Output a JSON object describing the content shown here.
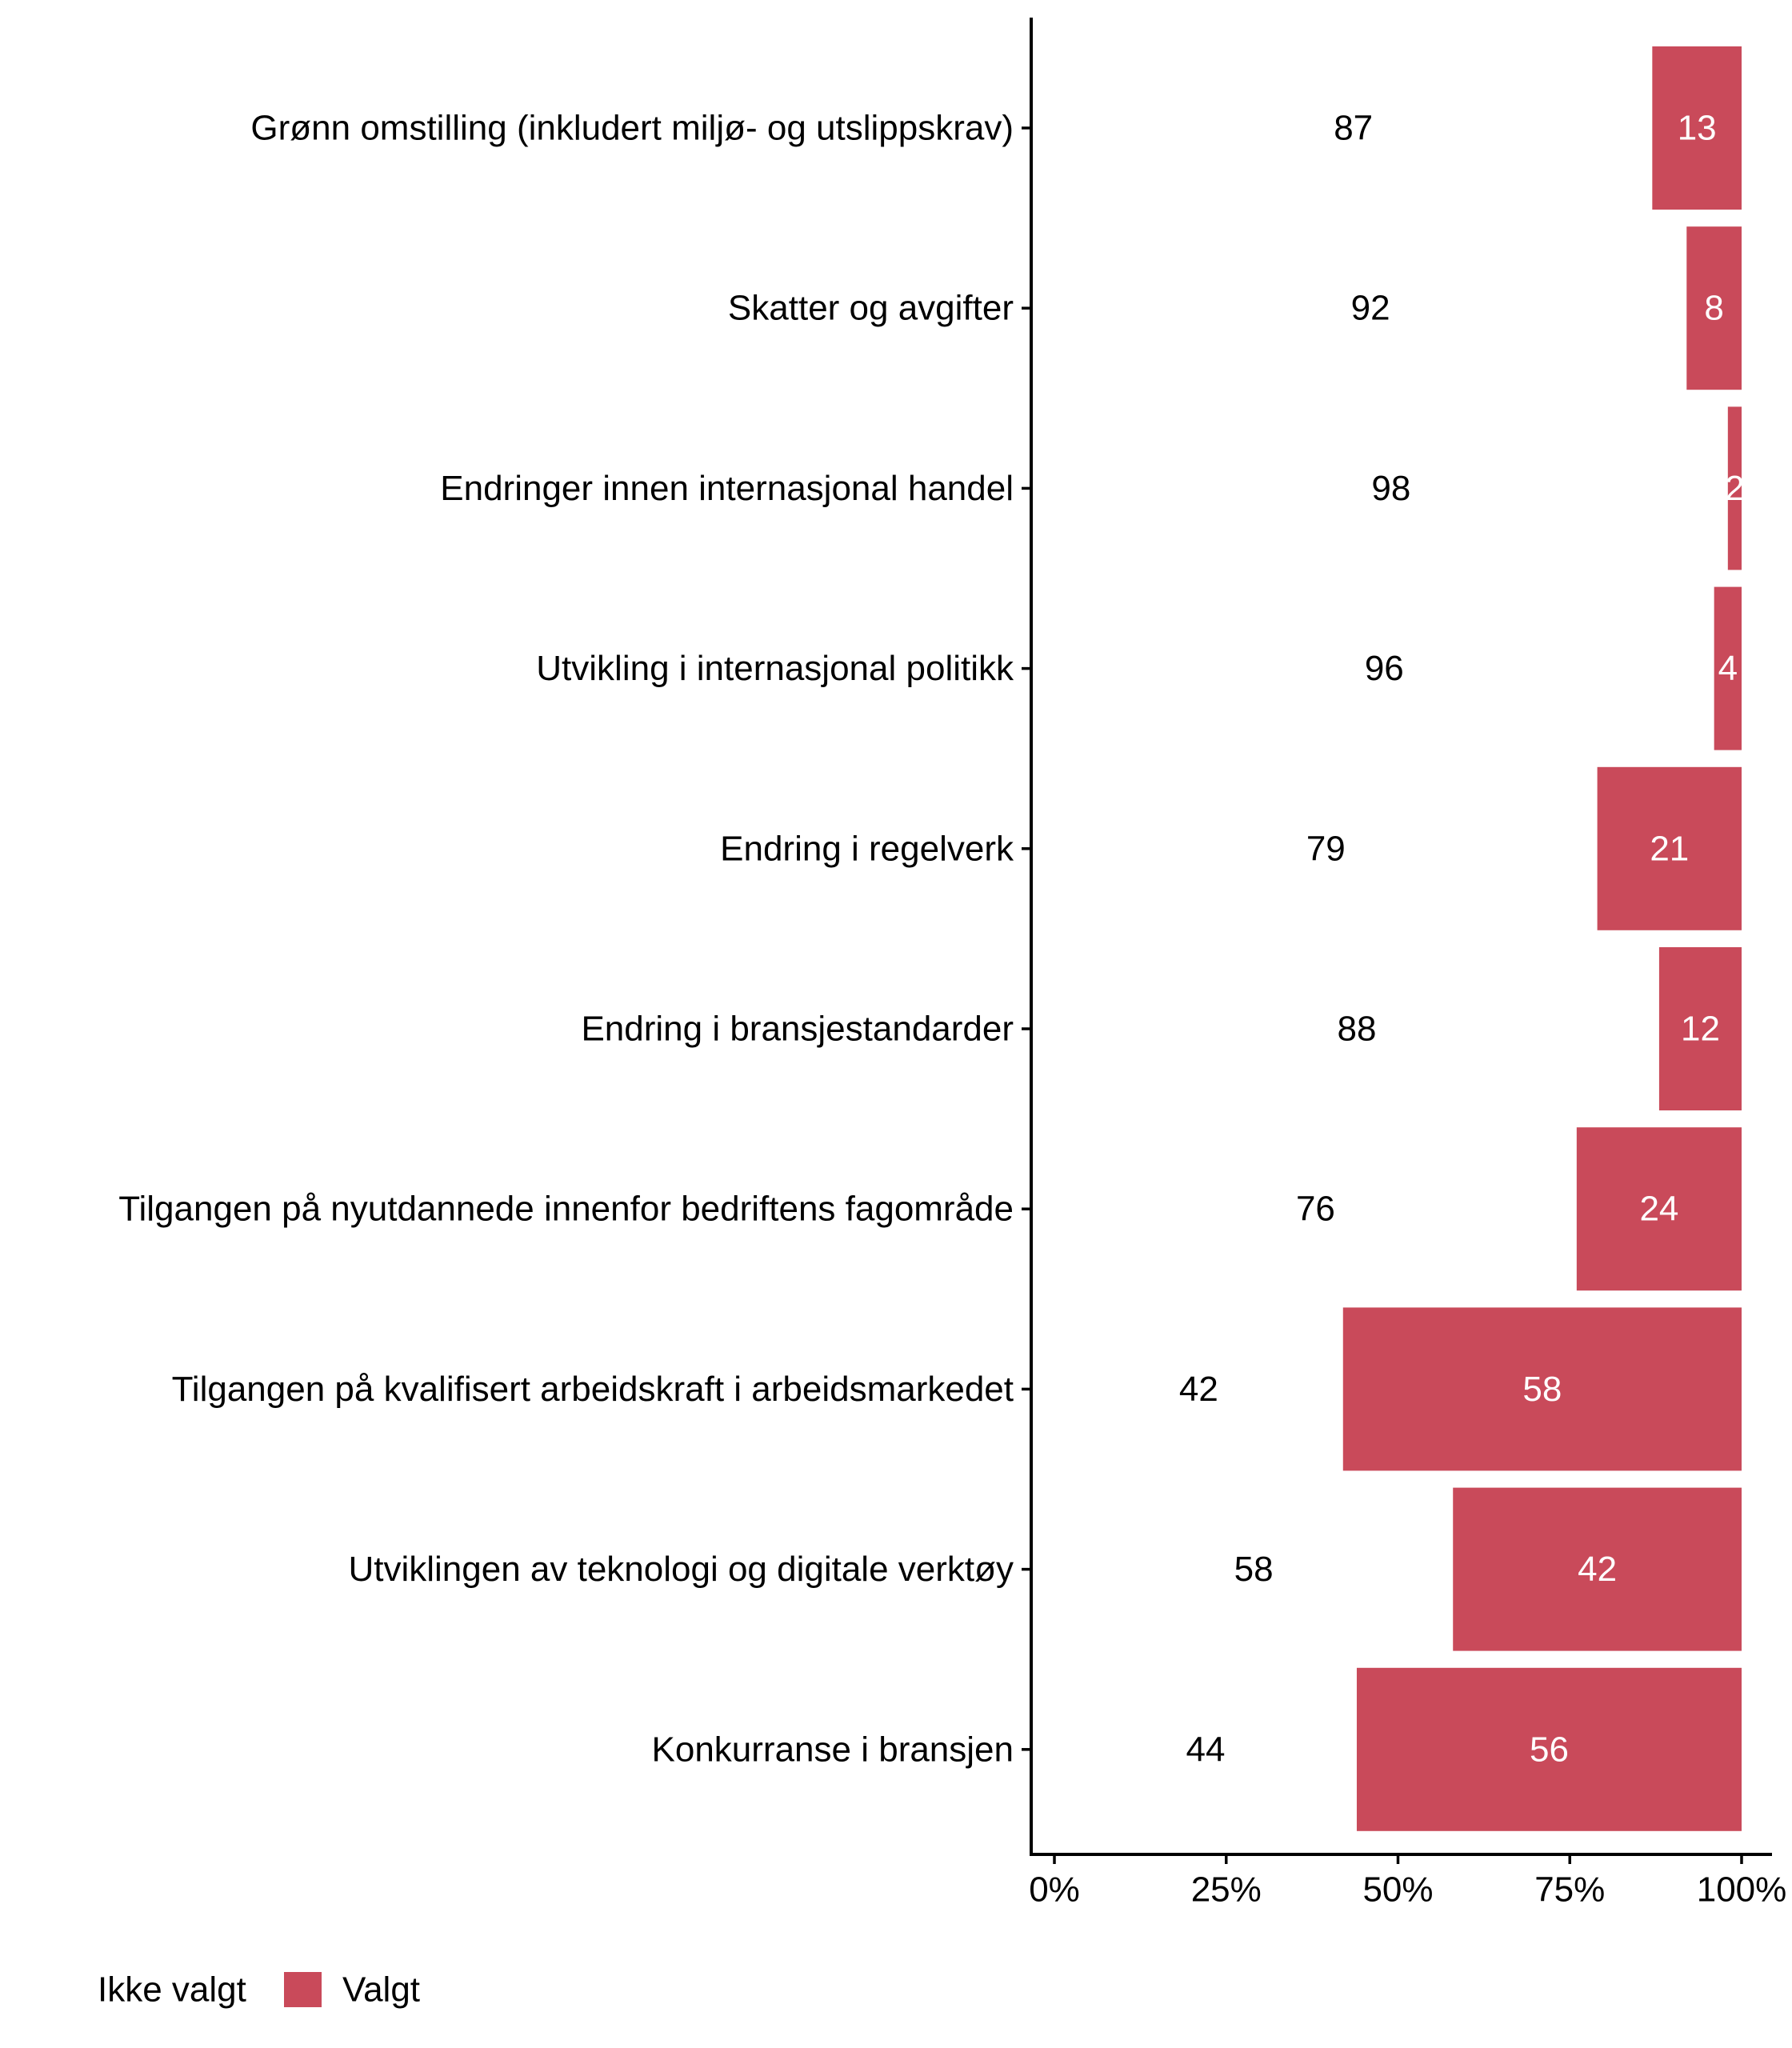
{
  "chart_data": {
    "type": "bar",
    "orientation": "horizontal",
    "stacked": true,
    "percent_stacked": true,
    "categories": [
      "Grønn omstilling (inkludert miljø- og utslippskrav)",
      "Skatter og avgifter",
      "Endringer innen internasjonal handel",
      "Utvikling i internasjonal politikk",
      "Endring i regelverk",
      "Endring i bransjestandarder",
      "Tilgangen på nyutdannede innenfor bedriftens fagområde",
      "Tilgangen på kvalifisert arbeidskraft i arbeidsmarkedet",
      "Utviklingen av teknologi og digitale verktøy",
      "Konkurranse i bransjen"
    ],
    "series": [
      {
        "name": "Ikke valgt",
        "values": [
          87,
          92,
          98,
          96,
          79,
          88,
          76,
          42,
          58,
          44
        ],
        "color": "#ffffff",
        "label_color": "#000000"
      },
      {
        "name": "Valgt",
        "values": [
          13,
          8,
          2,
          4,
          21,
          12,
          24,
          58,
          42,
          56
        ],
        "color": "#c94a5a",
        "label_color": "#ffffff"
      }
    ],
    "x_ticks": [
      "0%",
      "25%",
      "50%",
      "75%",
      "100%"
    ],
    "xlim": [
      0,
      100
    ],
    "grid": false,
    "legend_position": "bottom-left",
    "title": "",
    "xlabel": "",
    "ylabel": ""
  }
}
